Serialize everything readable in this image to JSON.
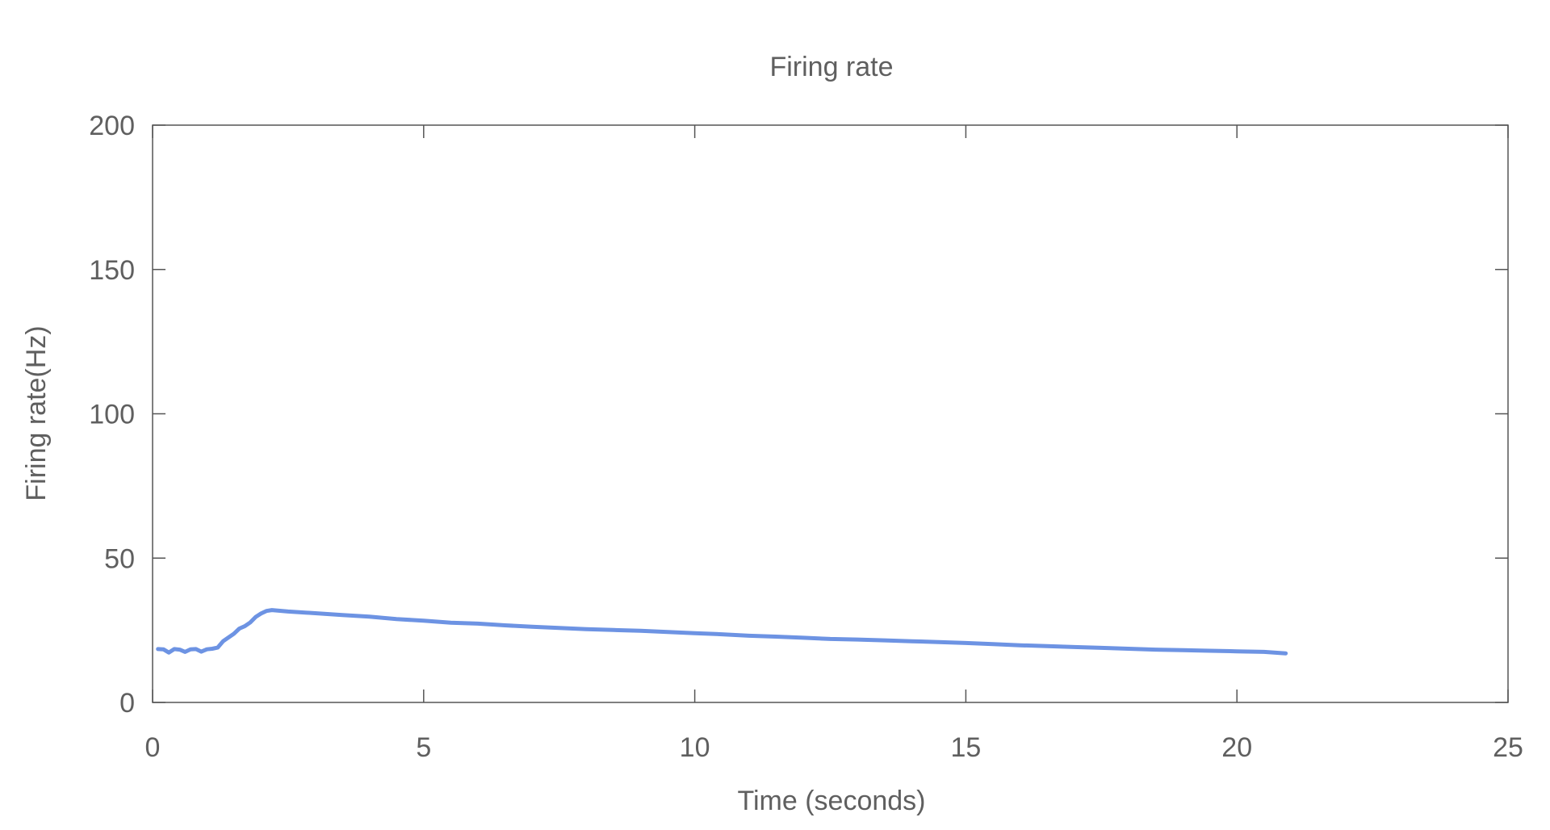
{
  "chart_data": {
    "type": "line",
    "title": "Firing rate",
    "xlabel": "Time (seconds)",
    "ylabel": "Firing rate(Hz)",
    "xlim": [
      0,
      25
    ],
    "ylim": [
      0,
      200
    ],
    "xticks": [
      0,
      5,
      10,
      15,
      20,
      25
    ],
    "yticks": [
      0,
      50,
      100,
      150,
      200
    ],
    "grid": false,
    "legend": "none",
    "colors": {
      "line": "#6d93e3",
      "axis": "#555555",
      "text": "#5f5f5f"
    },
    "series": [
      {
        "x": [
          0.1,
          0.2,
          0.3,
          0.4,
          0.5,
          0.6,
          0.7,
          0.8,
          0.9,
          1.0,
          1.1,
          1.2,
          1.3,
          1.4,
          1.5,
          1.6,
          1.7,
          1.8,
          1.9,
          2.0,
          2.1,
          2.2,
          2.5,
          3.0,
          3.5,
          4.0,
          4.5,
          5.0,
          5.5,
          6.0,
          6.5,
          7.0,
          7.5,
          8.0,
          8.5,
          9.0,
          9.5,
          10.0,
          10.5,
          11.0,
          11.5,
          12.0,
          12.5,
          13.0,
          13.5,
          14.0,
          14.5,
          15.0,
          15.5,
          16.0,
          16.5,
          17.0,
          17.5,
          18.0,
          18.5,
          19.0,
          19.5,
          20.0,
          20.5,
          20.9
        ],
        "y": [
          18.5,
          18.4,
          17.3,
          18.5,
          18.3,
          17.5,
          18.4,
          18.5,
          17.6,
          18.4,
          18.6,
          19.0,
          21.2,
          22.5,
          23.8,
          25.6,
          26.4,
          27.7,
          29.6,
          30.8,
          31.7,
          32.0,
          31.5,
          30.9,
          30.3,
          29.7,
          28.9,
          28.3,
          27.6,
          27.3,
          26.7,
          26.2,
          25.8,
          25.4,
          25.1,
          24.8,
          24.4,
          24.0,
          23.6,
          23.1,
          22.8,
          22.4,
          22.0,
          21.8,
          21.5,
          21.2,
          20.9,
          20.6,
          20.2,
          19.8,
          19.5,
          19.2,
          18.9,
          18.6,
          18.3,
          18.1,
          17.9,
          17.7,
          17.5,
          17.0
        ]
      }
    ]
  }
}
